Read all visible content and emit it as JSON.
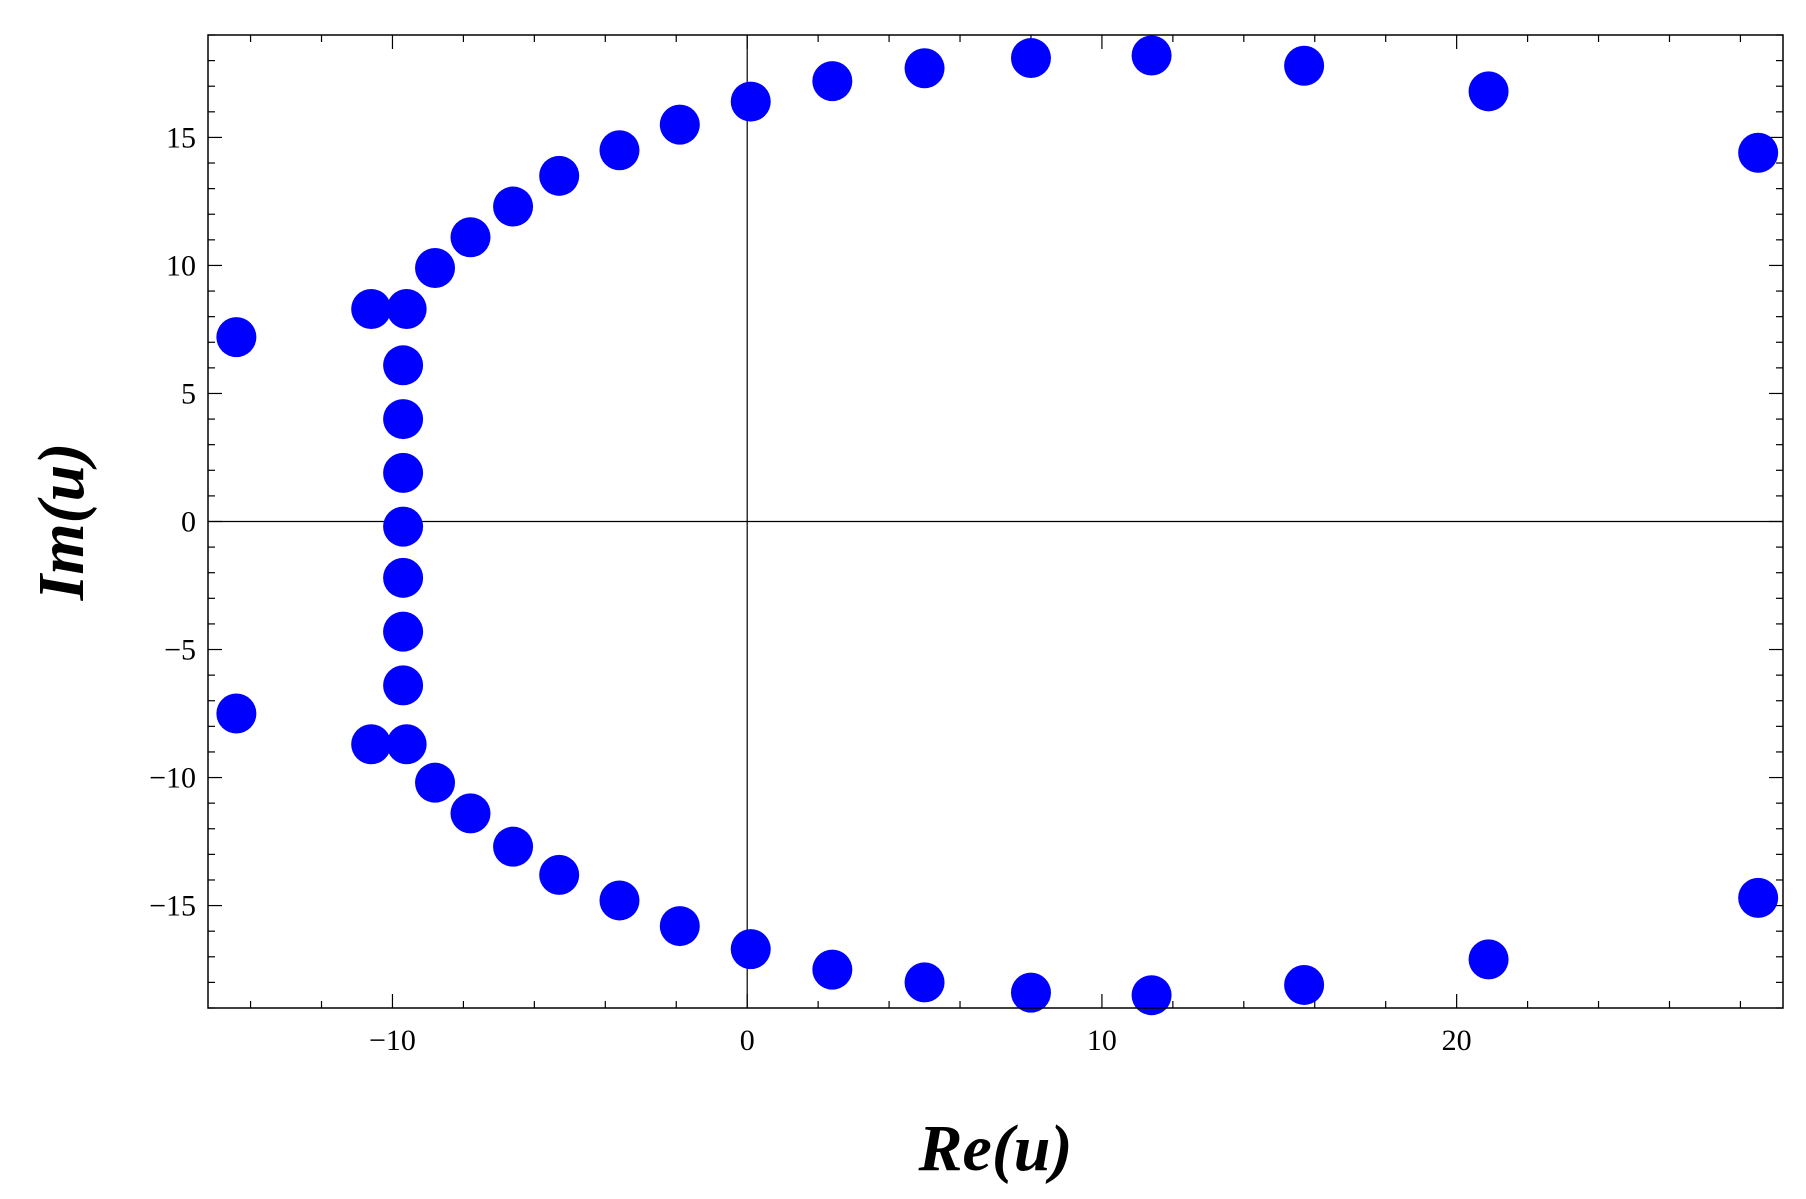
{
  "chart_data": {
    "type": "scatter",
    "title": "",
    "xlabel": "Re(u)",
    "ylabel": "Im(u)",
    "xlim": [
      -15.2,
      29.2
    ],
    "ylim": [
      -19,
      19
    ],
    "grid": false,
    "x_ticks": [
      -10,
      0,
      10,
      20
    ],
    "y_ticks": [
      -15,
      -10,
      -5,
      0,
      5,
      10,
      15
    ],
    "x_tick_labels": [
      "−10",
      "0",
      "10",
      "20"
    ],
    "y_tick_labels": [
      "−15",
      "−10",
      "−5",
      "0",
      "5",
      "10",
      "15"
    ],
    "marker_color": "#0000ff",
    "series": [
      {
        "points": [
          [
            -14.4,
            7.2
          ],
          [
            -14.4,
            -7.5
          ],
          [
            -10.6,
            8.3
          ],
          [
            -10.6,
            -8.7
          ],
          [
            -9.6,
            8.3
          ],
          [
            -9.6,
            -8.7
          ],
          [
            -9.7,
            6.1
          ],
          [
            -9.7,
            4.0
          ],
          [
            -9.7,
            1.9
          ],
          [
            -9.7,
            -0.2
          ],
          [
            -9.7,
            -2.2
          ],
          [
            -9.7,
            -4.3
          ],
          [
            -9.7,
            -6.4
          ],
          [
            -8.8,
            9.9
          ],
          [
            -8.8,
            -10.2
          ],
          [
            -7.8,
            11.1
          ],
          [
            -7.8,
            -11.4
          ],
          [
            -6.6,
            12.3
          ],
          [
            -6.6,
            -12.7
          ],
          [
            -5.3,
            13.5
          ],
          [
            -5.3,
            -13.8
          ],
          [
            -3.6,
            14.5
          ],
          [
            -3.6,
            -14.8
          ],
          [
            -1.9,
            15.5
          ],
          [
            -1.9,
            -15.8
          ],
          [
            0.1,
            16.4
          ],
          [
            0.1,
            -16.7
          ],
          [
            2.4,
            17.2
          ],
          [
            2.4,
            -17.5
          ],
          [
            5.0,
            17.7
          ],
          [
            5.0,
            -18.0
          ],
          [
            8.0,
            18.1
          ],
          [
            8.0,
            -18.4
          ],
          [
            11.4,
            18.2
          ],
          [
            11.4,
            -18.5
          ],
          [
            15.7,
            17.8
          ],
          [
            15.7,
            -18.1
          ],
          [
            20.9,
            16.8
          ],
          [
            20.9,
            -17.1
          ],
          [
            28.5,
            14.4
          ],
          [
            28.5,
            -14.7
          ]
        ]
      }
    ]
  }
}
